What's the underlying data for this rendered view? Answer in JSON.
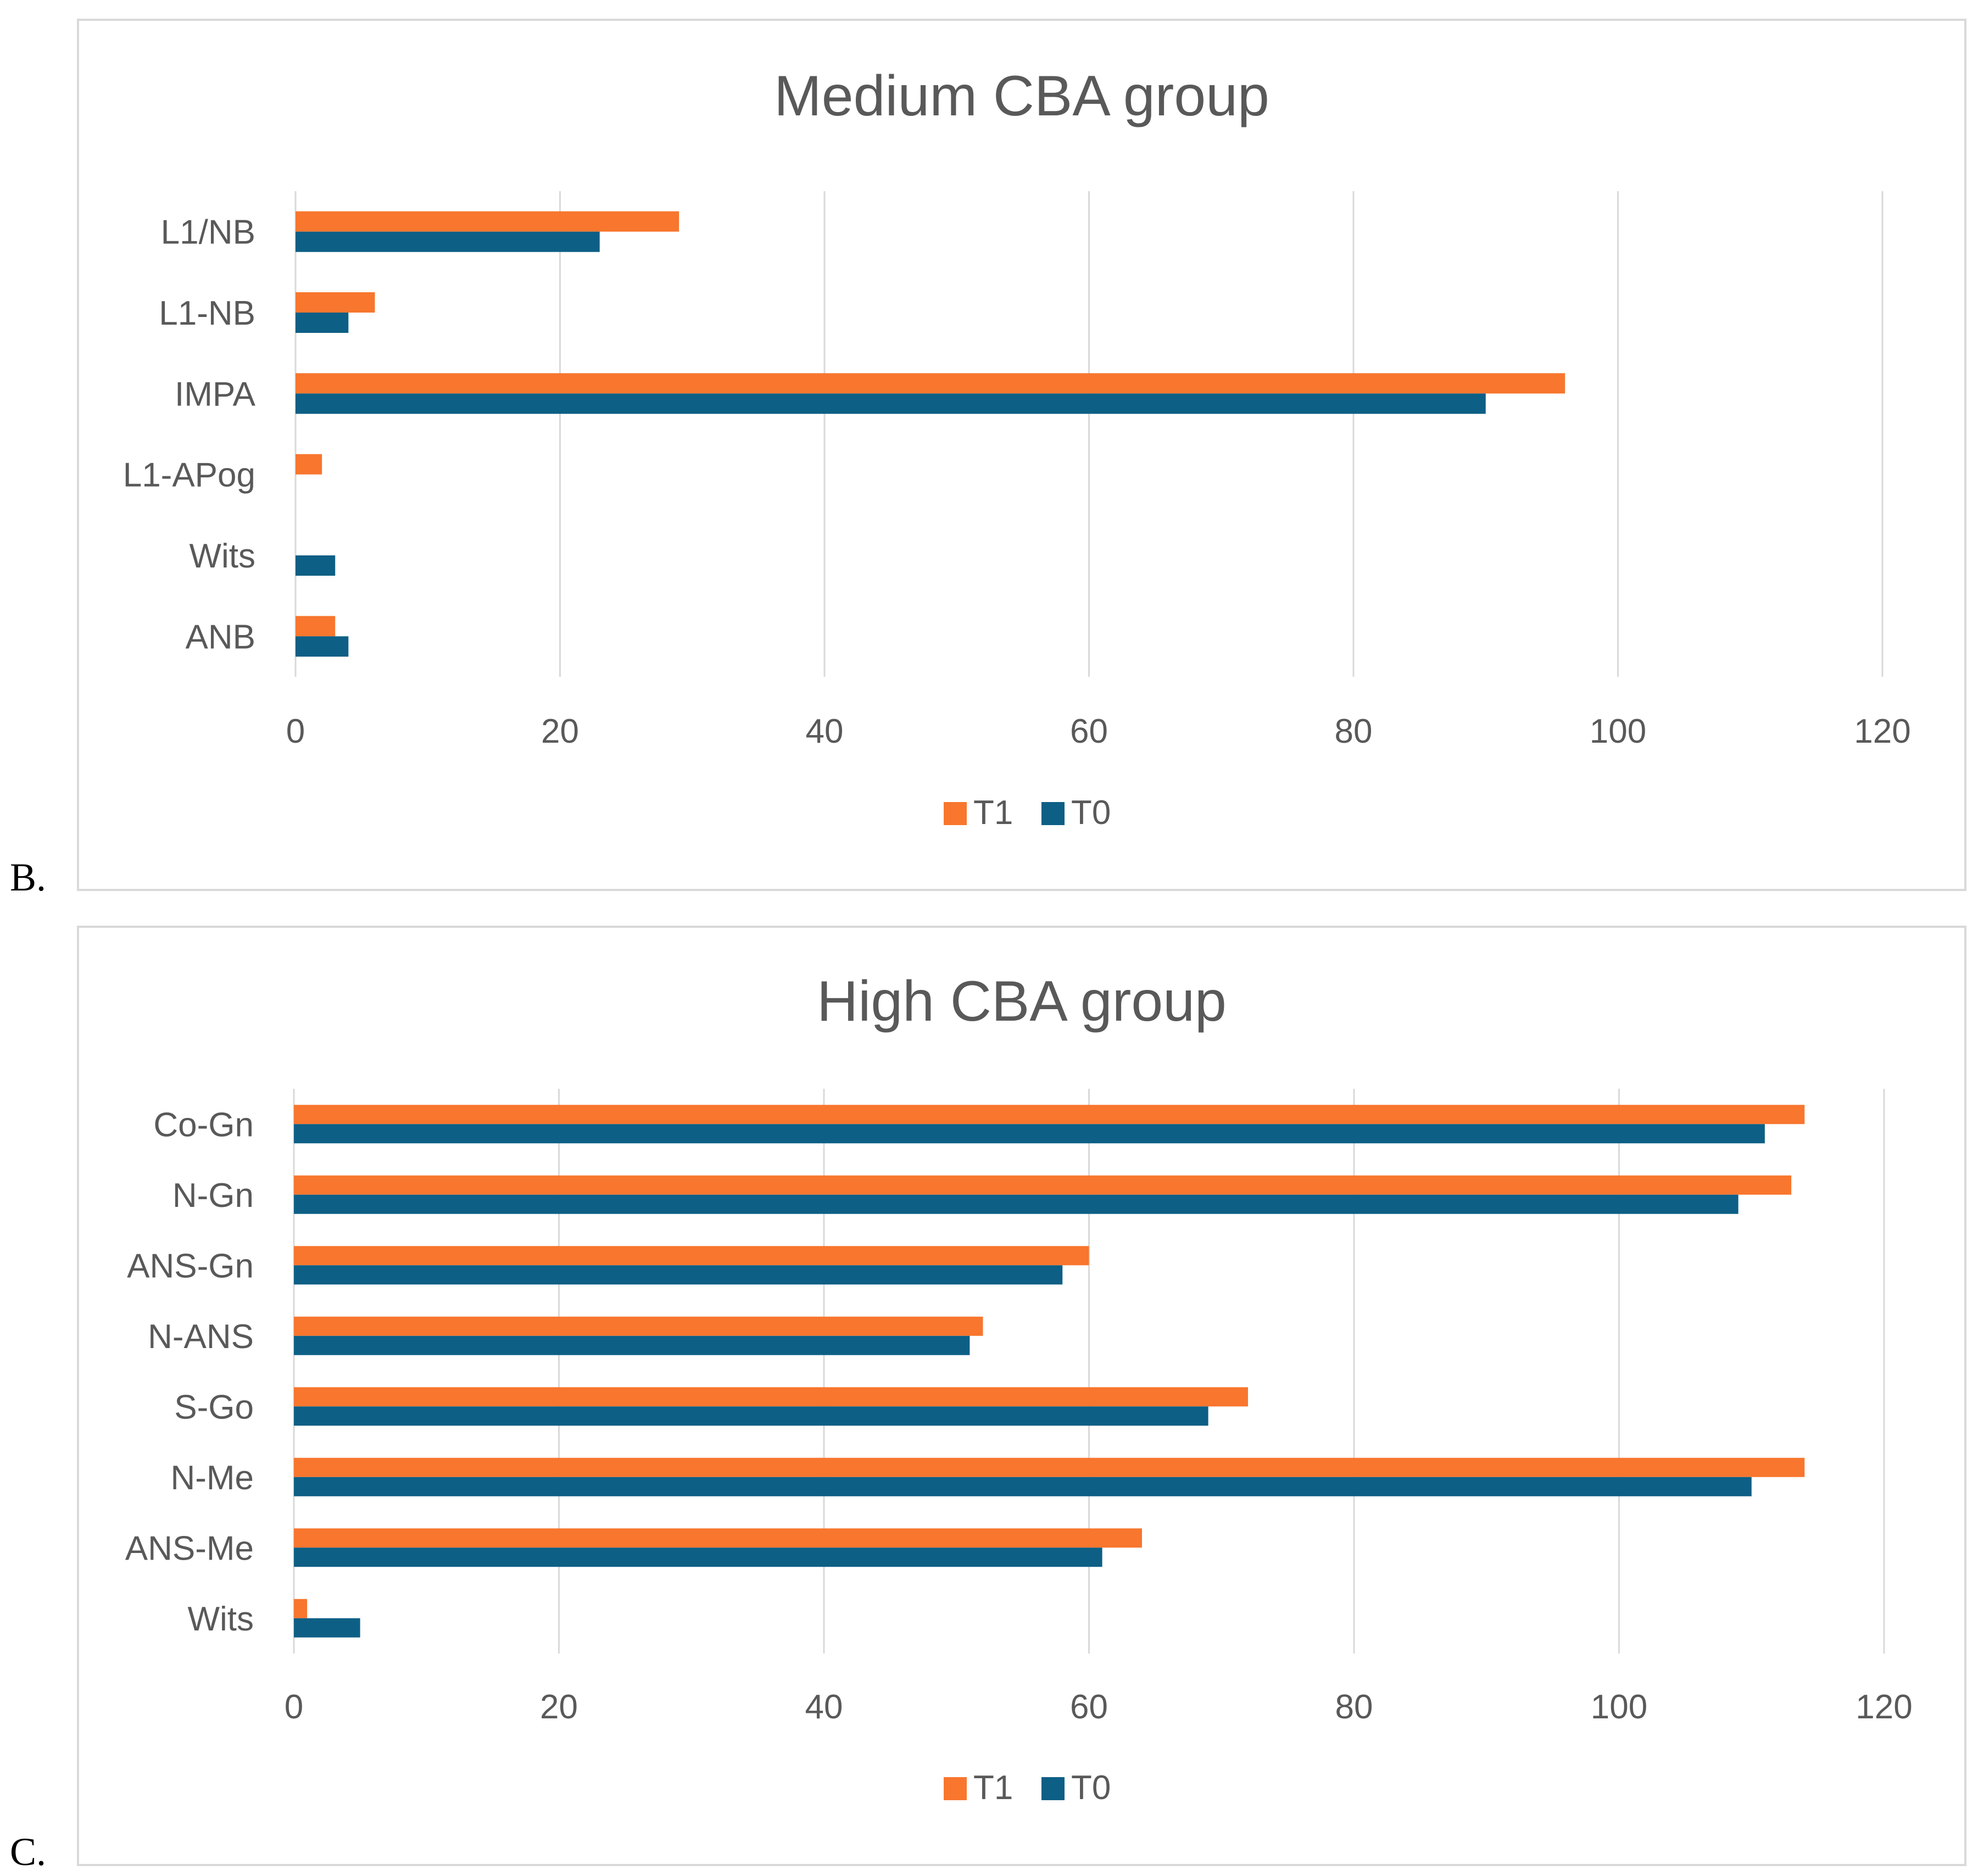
{
  "colors": {
    "T1": "#F8762E",
    "T0": "#0D5F85",
    "grid": "#d9d9d9",
    "text": "#595959"
  },
  "panels": [
    {
      "label": "B."
    },
    {
      "label": "C."
    }
  ],
  "chart_data": [
    {
      "type": "bar",
      "orientation": "horizontal",
      "title": "Medium CBA group",
      "categories": [
        "L1/NB",
        "L1-NB",
        "IMPA",
        "L1-APog",
        "Wits",
        "ANB"
      ],
      "series": [
        {
          "name": "T1",
          "values": [
            29,
            6,
            96,
            2,
            0,
            3
          ]
        },
        {
          "name": "T0",
          "values": [
            23,
            4,
            90,
            0,
            3,
            4
          ]
        }
      ],
      "xlim": [
        0,
        120
      ],
      "xticks": [
        0,
        20,
        40,
        60,
        80,
        100,
        120
      ],
      "grid": true,
      "legend": "bottom",
      "xlabel": "",
      "ylabel": ""
    },
    {
      "type": "bar",
      "orientation": "horizontal",
      "title": "High CBA group",
      "categories": [
        "Co-Gn",
        "N-Gn",
        "ANS-Gn",
        "N-ANS",
        "S-Go",
        "N-Me",
        "ANS-Me",
        "Wits"
      ],
      "series": [
        {
          "name": "T1",
          "values": [
            114,
            113,
            60,
            52,
            72,
            114,
            64,
            1
          ]
        },
        {
          "name": "T0",
          "values": [
            111,
            109,
            58,
            51,
            69,
            110,
            61,
            5
          ]
        }
      ],
      "xlim": [
        0,
        120
      ],
      "xticks": [
        0,
        20,
        40,
        60,
        80,
        100,
        120
      ],
      "grid": true,
      "legend": "bottom",
      "xlabel": "",
      "ylabel": ""
    }
  ]
}
